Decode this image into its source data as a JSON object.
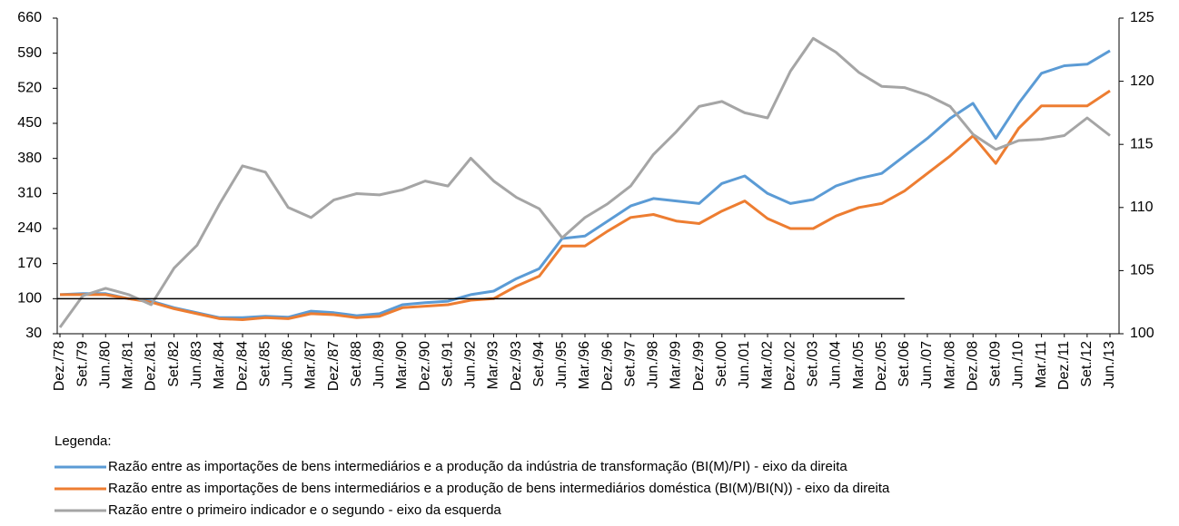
{
  "chart_data": {
    "type": "line",
    "categories": [
      "Dez./78",
      "Set./79",
      "Jun./80",
      "Mar./81",
      "Dez./81",
      "Set./82",
      "Jun./83",
      "Mar./84",
      "Dez./84",
      "Set./85",
      "Jun./86",
      "Mar./87",
      "Dez./87",
      "Set./88",
      "Jun./89",
      "Mar./90",
      "Dez./90",
      "Set./91",
      "Jun./92",
      "Mar./93",
      "Dez./93",
      "Set./94",
      "Jun./95",
      "Mar./96",
      "Dez./96",
      "Set./97",
      "Jun./98",
      "Mar./99",
      "Dez./99",
      "Set./00",
      "Jun./01",
      "Mar./02",
      "Dez./02",
      "Set./03",
      "Jun./04",
      "Mar./05",
      "Dez./05",
      "Set./06",
      "Jun./07",
      "Mar./08",
      "Dez./08",
      "Set./09",
      "Jun./10",
      "Mar./11",
      "Dez./11",
      "Set./12",
      "Jun./13"
    ],
    "series": [
      {
        "name": "Razão entre as importações de bens intermediários e a produção da indústria de transformação (BI(M)/PI) - eixo da direita",
        "color": "#5b9bd5",
        "values": [
          108,
          110,
          110,
          100,
          95,
          82,
          72,
          62,
          62,
          65,
          63,
          75,
          72,
          66,
          70,
          88,
          92,
          95,
          108,
          115,
          140,
          160,
          220,
          225,
          255,
          285,
          300,
          295,
          290,
          330,
          345,
          310,
          290,
          298,
          325,
          340,
          350,
          385,
          420,
          460,
          490,
          420,
          490,
          550,
          565,
          568,
          595
        ]
      },
      {
        "name": "Razão entre as importações de bens intermediários e a produção de bens intermediários doméstica (BI(M)/BI(N)) - eixo da direita",
        "color": "#ed7d31",
        "values": [
          108,
          108,
          108,
          100,
          93,
          80,
          70,
          60,
          58,
          62,
          60,
          70,
          68,
          62,
          65,
          82,
          85,
          88,
          97,
          100,
          125,
          145,
          205,
          205,
          235,
          262,
          268,
          255,
          250,
          275,
          295,
          260,
          240,
          240,
          265,
          282,
          290,
          315,
          350,
          385,
          425,
          370,
          440,
          485,
          485,
          485,
          515
        ]
      },
      {
        "name": "Razão entre o primeiro indicador e o segundo - eixo da esquerda",
        "color": "#a5a5a5",
        "axis": "y2",
        "values": [
          100.5,
          103,
          103.6,
          103.1,
          102.3,
          105.2,
          107,
          110.3,
          113.3,
          112.8,
          110,
          109.2,
          110.6,
          111.1,
          111,
          111.4,
          112.1,
          111.7,
          113.9,
          112.1,
          110.8,
          109.9,
          107.6,
          109.2,
          110.3,
          111.7,
          114.2,
          116,
          118,
          118.4,
          117.5,
          117.1,
          120.8,
          123.4,
          122.3,
          120.7,
          119.6,
          119.5,
          118.9,
          118,
          115.8,
          114.6,
          115.3,
          115.4,
          115.7,
          117.1,
          115.7
        ]
      }
    ],
    "ylim": [
      30,
      660
    ],
    "yticks": [
      30,
      100,
      170,
      240,
      310,
      380,
      450,
      520,
      590,
      660
    ],
    "y2lim": [
      100,
      125
    ],
    "y2ticks": [
      100,
      105,
      110,
      115,
      120,
      125
    ],
    "hline": {
      "value": 100,
      "until": "Set./06",
      "color": "#000000"
    },
    "legend_title": "Legenda:"
  }
}
